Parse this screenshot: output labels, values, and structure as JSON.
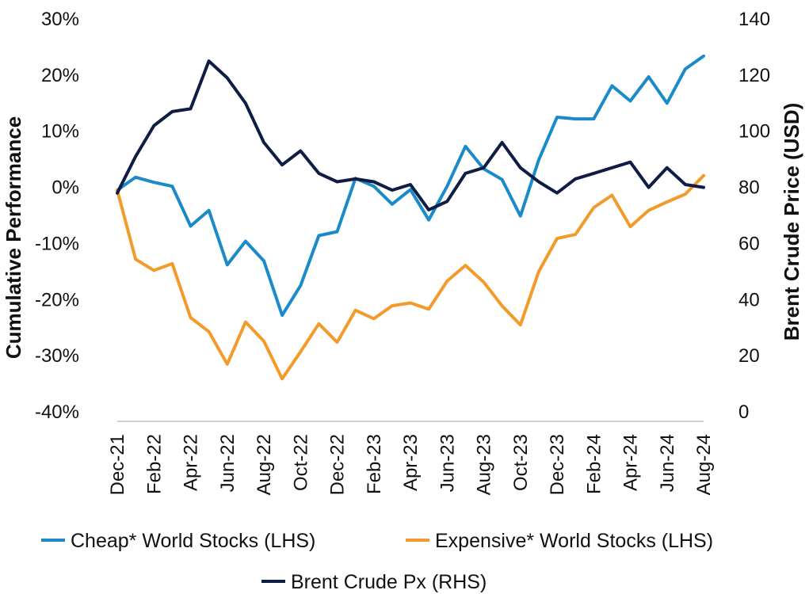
{
  "chart_data": {
    "type": "line",
    "x_ticks": [
      "Dec-21",
      "Feb-22",
      "Apr-22",
      "Jun-22",
      "Aug-22",
      "Oct-22",
      "Dec-22",
      "Feb-23",
      "Apr-23",
      "Jun-23",
      "Aug-23",
      "Oct-23",
      "Dec-23",
      "Feb-24",
      "Apr-24",
      "Jun-24",
      "Aug-24"
    ],
    "x": [
      "Dec-21",
      "Jan-22",
      "Feb-22",
      "Mar-22",
      "Apr-22",
      "May-22",
      "Jun-22",
      "Jul-22",
      "Aug-22",
      "Sep-22",
      "Oct-22",
      "Nov-22",
      "Dec-22",
      "Jan-23",
      "Feb-23",
      "Mar-23",
      "Apr-23",
      "May-23",
      "Jun-23",
      "Jul-23",
      "Aug-23",
      "Sep-23",
      "Oct-23",
      "Nov-23",
      "Dec-23",
      "Jan-24",
      "Feb-24",
      "Mar-24",
      "Apr-24",
      "May-24",
      "Jun-24",
      "Jul-24",
      "Aug-24"
    ],
    "ylabel_left": "Cumulative Performance",
    "ylabel_right": "Brent Crude Price (USD)",
    "ylim_left": [
      -40,
      30
    ],
    "yticks_left": [
      "30%",
      "20%",
      "10%",
      "0%",
      "-10%",
      "-20%",
      "-30%",
      "-40%"
    ],
    "ylim_right": [
      0,
      140
    ],
    "yticks_right": [
      "140",
      "120",
      "100",
      "80",
      "60",
      "40",
      "20",
      "0"
    ],
    "grid": false,
    "legend_position": "bottom",
    "series": [
      {
        "name": "Cheap* World Stocks (LHS)",
        "axis": "left",
        "color": "#1a8ac9",
        "values": [
          -0.5,
          1.8,
          0.9,
          0.2,
          -6.9,
          -4.1,
          -13.8,
          -9.6,
          -13.1,
          -22.8,
          -17.5,
          -8.6,
          -7.9,
          1.6,
          0.2,
          -3.0,
          -0.4,
          -5.8,
          0.2,
          7.3,
          3.3,
          1.4,
          -5.1,
          4.9,
          12.5,
          12.2,
          12.2,
          18.1,
          15.4,
          19.7,
          15.0,
          21.1,
          23.4
        ]
      },
      {
        "name": "Expensive* World Stocks (LHS)",
        "axis": "left",
        "color": "#f39a2b",
        "values": [
          -0.5,
          -12.8,
          -14.8,
          -13.6,
          -23.2,
          -25.7,
          -31.5,
          -24.0,
          -27.4,
          -34.1,
          -29.3,
          -24.3,
          -27.6,
          -21.9,
          -23.4,
          -21.1,
          -20.6,
          -21.7,
          -16.7,
          -13.9,
          -16.9,
          -21.1,
          -24.5,
          -15.0,
          -9.1,
          -8.4,
          -3.6,
          -1.4,
          -7.0,
          -4.1,
          -2.6,
          -1.2,
          2.1
        ]
      },
      {
        "name": "Brent Crude Px (RHS)",
        "axis": "right",
        "color": "#0f1d44",
        "values": [
          78,
          91,
          102,
          107,
          108,
          125,
          119,
          110,
          96,
          88,
          93,
          85,
          82,
          83,
          82,
          79,
          81,
          72,
          75,
          85,
          87,
          96,
          87,
          82,
          78,
          83,
          85,
          87,
          89,
          80,
          87,
          81,
          80
        ]
      }
    ]
  }
}
